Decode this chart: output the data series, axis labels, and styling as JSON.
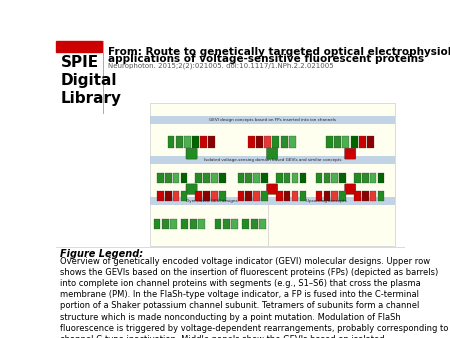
{
  "background_color": "#ffffff",
  "header": {
    "spie_logo_color": "#000000",
    "spie_logo_fontsize": 11,
    "title_line1": "From: Route to genetically targeted optical electrophysiology: development and",
    "title_line2": "applications of voltage-sensitive fluorescent proteins",
    "title_color": "#000000",
    "title_fontsize": 7.5,
    "subtitle": "Neurophoton. 2015;2(2):021005. doi:10.1117/1.NPh.2.2.021005",
    "subtitle_fontsize": 5.0,
    "subtitle_color": "#555555"
  },
  "figure_legend_label": "Figure Legend:",
  "figure_legend_fontsize": 7,
  "legend_text": "Overview of genetically encoded voltage indicator (GEVI) molecular designs. Upper row shows the GEVIs based on the insertion of fluorescent proteins (FPs) (depicted as barrels) into complete ion channel proteins with segments (e.g., S1–S6) that cross the plasma membrane (PM). In the FlaSh-type voltage indicator, a FP is fused into the C-terminal portion of a Shaker potassium channel subunit. Tetramers of subunits form a channel structure which is made nonconducting by a point mutation. Modulation of FlaSh fluorescence is triggered by voltage-dependent rearrangements, probably corresponding to channel C-type inactivation. Middle panels show the GEVIs based on isolated voltage-sensing domains. In Förster resonance energy transfer (FRET)-based voltage-sensitive probes of the voltage-sensitive fluorescent protein (VSFP1/2) type, the voltage-sensor domain, consisting of four",
  "legend_fontsize": 6,
  "legend_color": "#000000",
  "image_placeholder_color": "#fffff0",
  "image_border_color": "#cccccc",
  "spie_red_color": "#cc0000",
  "divider_line_color": "#aaaaaa",
  "section_band_color": "#b8cce4",
  "section_bottom_band_color": "#b8cce4"
}
